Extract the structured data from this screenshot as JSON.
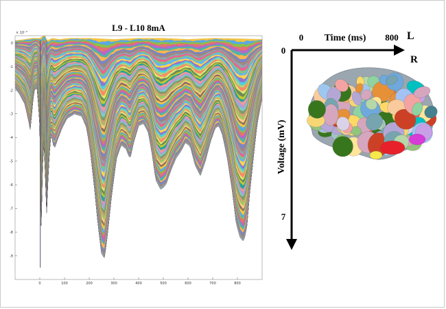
{
  "chart_data": [
    {
      "type": "area",
      "title": "L9 - L10 8mA",
      "exponent_label": "× 10⁻³",
      "xlim": [
        -100,
        900
      ],
      "ylim": [
        -10,
        0.3
      ],
      "x_ticks": [
        0,
        100,
        200,
        300,
        400,
        500,
        600,
        700,
        800
      ],
      "y_ticks": [
        0,
        -1,
        -2,
        -3,
        -4,
        -5,
        -6,
        -7,
        -8,
        -9
      ],
      "envelope_bottom": {
        "x": [
          -100,
          -80,
          -60,
          -45,
          -38,
          -30,
          -22,
          -10,
          0,
          2,
          10,
          16,
          22,
          28,
          36,
          46,
          58,
          75,
          90,
          110,
          140,
          170,
          190,
          205,
          220,
          235,
          250,
          262,
          275,
          290,
          310,
          330,
          350,
          365,
          380,
          400,
          420,
          440,
          455,
          470,
          490,
          510,
          530,
          550,
          570,
          590,
          610,
          630,
          650,
          670,
          690,
          710,
          725,
          740,
          760,
          780,
          795,
          810,
          825,
          838,
          850,
          865,
          880,
          900
        ],
        "y": [
          -1.9,
          -2.2,
          -2.6,
          -3.3,
          -3.7,
          -2.6,
          -2.0,
          -1.9,
          -3.5,
          -9.5,
          -5.5,
          -4.0,
          -5.5,
          -7.2,
          -5.0,
          -3.8,
          -4.5,
          -4.0,
          -3.6,
          -3.2,
          -3.0,
          -3.1,
          -3.6,
          -4.6,
          -6.0,
          -7.6,
          -8.9,
          -9.1,
          -8.0,
          -6.5,
          -4.9,
          -4.3,
          -4.5,
          -4.9,
          -4.2,
          -3.5,
          -3.4,
          -3.8,
          -4.7,
          -5.8,
          -6.2,
          -6.0,
          -5.4,
          -4.9,
          -4.6,
          -4.2,
          -4.4,
          -5.2,
          -5.6,
          -5.0,
          -4.2,
          -3.6,
          -3.5,
          -3.9,
          -4.9,
          -6.3,
          -7.6,
          -8.2,
          -8.4,
          -7.8,
          -6.3,
          -4.8,
          -3.4,
          -2.3
        ]
      },
      "envelope_top": {
        "x": [
          -100,
          -60,
          -30,
          0,
          20,
          30,
          50,
          80,
          120,
          200,
          300,
          400,
          500,
          600,
          700,
          800,
          900
        ],
        "y": [
          0.1,
          0.15,
          0.2,
          0.2,
          0.35,
          0.1,
          0.2,
          0.15,
          0.2,
          0.2,
          0.15,
          0.2,
          0.2,
          0.15,
          0.2,
          0.18,
          0.15
        ]
      }
    },
    {
      "type": "diagram",
      "xlabel": "Time (ms)",
      "x_start_label": "0",
      "x_end_label": "800",
      "ylabel": "Voltage (mV)",
      "y_start_label": "0",
      "y_end_label": "7",
      "orientation_labels": [
        "L",
        "R"
      ]
    }
  ]
}
